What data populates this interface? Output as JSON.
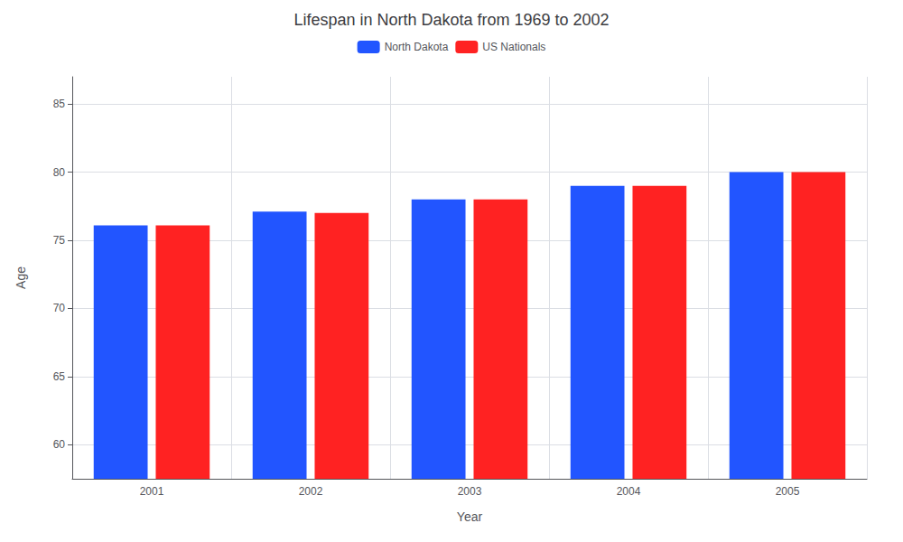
{
  "chart_data": {
    "type": "bar",
    "title": "Lifespan in North Dakota from 1969 to 2002",
    "xlabel": "Year",
    "ylabel": "Age",
    "categories": [
      "2001",
      "2002",
      "2003",
      "2004",
      "2005"
    ],
    "series": [
      {
        "name": "North Dakota",
        "color": "#2255ff",
        "values": [
          76.1,
          77.1,
          78.0,
          79.0,
          80.0
        ]
      },
      {
        "name": "US Nationals",
        "color": "#ff2222",
        "values": [
          76.1,
          77.0,
          78.0,
          79.0,
          80.0
        ]
      }
    ],
    "ylim": [
      57.5,
      87
    ],
    "yticks": [
      60,
      65,
      70,
      75,
      80,
      85
    ],
    "grid": true,
    "legend": "top"
  }
}
